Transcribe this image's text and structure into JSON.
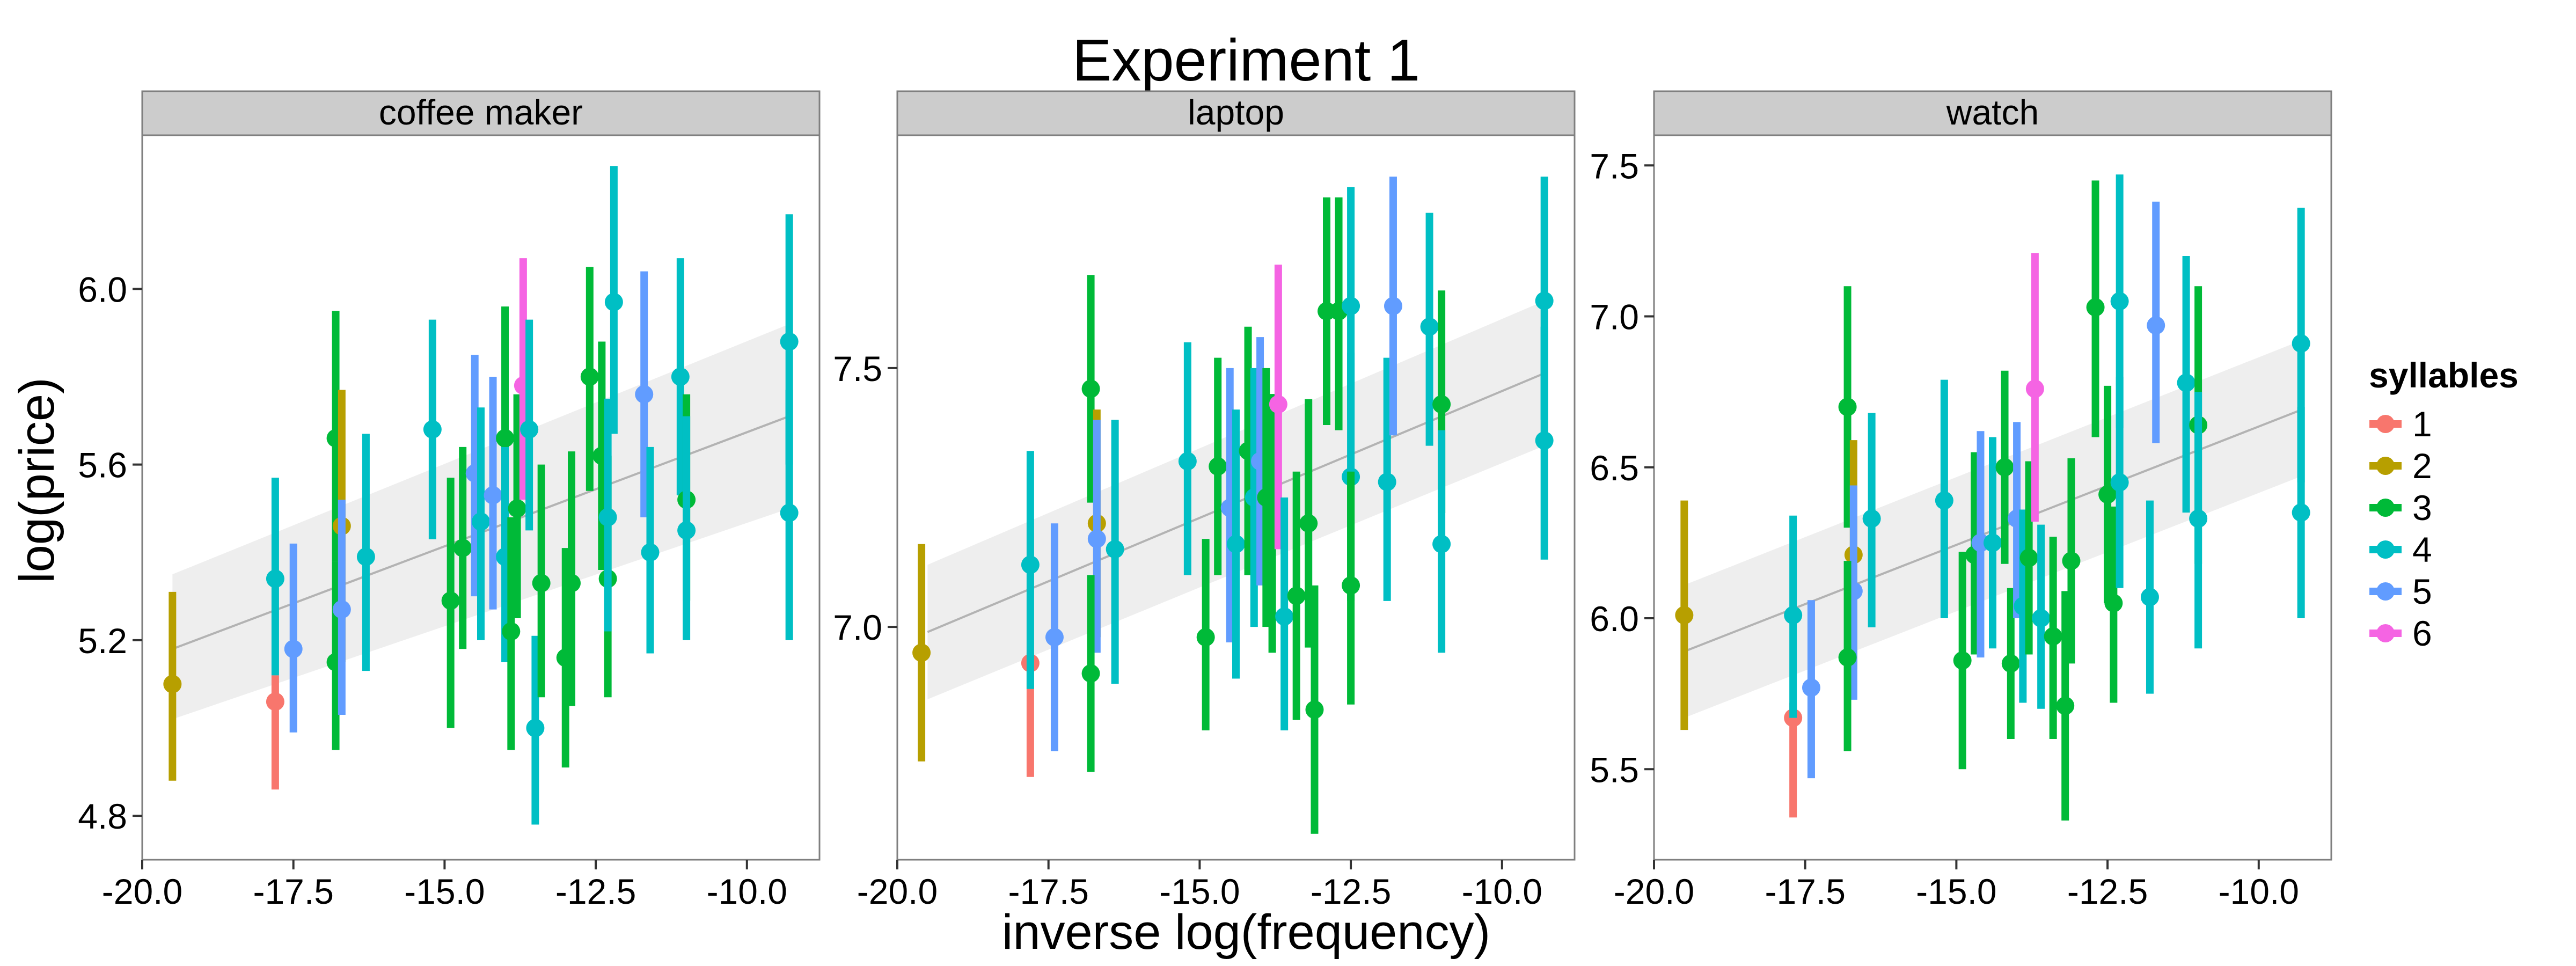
{
  "figure": {
    "title": "Experiment 1",
    "xlabel": "inverse log(frequency)",
    "ylabel": "log(price)"
  },
  "legend": {
    "title": "syllables",
    "placement": "right",
    "entries": [
      {
        "label": "1",
        "color": "#F8766D"
      },
      {
        "label": "2",
        "color": "#B79F00"
      },
      {
        "label": "3",
        "color": "#00BA38"
      },
      {
        "label": "4",
        "color": "#00BFC4"
      },
      {
        "label": "5",
        "color": "#619CFF"
      },
      {
        "label": "6",
        "color": "#F564E3"
      }
    ]
  },
  "colors": {
    "panel_bg": "#ffffff",
    "strip_bg": "#cccccc",
    "ribbon": "#ebebeb",
    "fit_line": "#b3b3b3"
  },
  "chart_data": [
    {
      "type": "scatter",
      "facet": "coffee maker",
      "xlim": [
        -20,
        -8.8
      ],
      "ylim": [
        4.7,
        6.35
      ],
      "xticks": [
        -20,
        -17.5,
        -15,
        -12.5,
        -10
      ],
      "xtick_labels": [
        "-20.0",
        "-17.5",
        "-15.0",
        "-12.5",
        "-10.0"
      ],
      "yticks": [
        4.8,
        5.2,
        5.6,
        6.0
      ],
      "ytick_labels": [
        "4.8",
        "5.2",
        "5.6",
        "6.0"
      ],
      "grid": false,
      "fit": {
        "x": [
          -19.5,
          -9.3
        ],
        "y": [
          5.18,
          5.71
        ],
        "ribbon_lower": [
          5.02,
          5.5
        ],
        "ribbon_upper": [
          5.35,
          5.92
        ]
      },
      "points": [
        {
          "x": -19.5,
          "y": 5.1,
          "lo": 4.88,
          "hi": 5.31,
          "syllables": 2
        },
        {
          "x": -17.8,
          "y": 5.06,
          "lo": 4.86,
          "hi": 5.12,
          "syllables": 1
        },
        {
          "x": -17.8,
          "y": 5.34,
          "lo": 5.12,
          "hi": 5.57,
          "syllables": 4
        },
        {
          "x": -17.5,
          "y": 5.18,
          "lo": 4.99,
          "hi": 5.42,
          "syllables": 5
        },
        {
          "x": -16.8,
          "y": 5.66,
          "lo": 5.38,
          "hi": 5.95,
          "syllables": 3
        },
        {
          "x": -16.7,
          "y": 5.46,
          "lo": 5.15,
          "hi": 5.77,
          "syllables": 2
        },
        {
          "x": -16.8,
          "y": 5.15,
          "lo": 4.95,
          "hi": 5.38,
          "syllables": 3
        },
        {
          "x": -16.7,
          "y": 5.27,
          "lo": 5.03,
          "hi": 5.52,
          "syllables": 5
        },
        {
          "x": -16.3,
          "y": 5.39,
          "lo": 5.13,
          "hi": 5.67,
          "syllables": 4
        },
        {
          "x": -15.2,
          "y": 5.68,
          "lo": 5.43,
          "hi": 5.93,
          "syllables": 4
        },
        {
          "x": -14.9,
          "y": 5.29,
          "lo": 5.0,
          "hi": 5.57,
          "syllables": 3
        },
        {
          "x": -14.7,
          "y": 5.41,
          "lo": 5.18,
          "hi": 5.64,
          "syllables": 3
        },
        {
          "x": -14.5,
          "y": 5.58,
          "lo": 5.3,
          "hi": 5.85,
          "syllables": 5
        },
        {
          "x": -14.4,
          "y": 5.47,
          "lo": 5.2,
          "hi": 5.73,
          "syllables": 4
        },
        {
          "x": -14.2,
          "y": 5.53,
          "lo": 5.27,
          "hi": 5.8,
          "syllables": 5
        },
        {
          "x": -14.0,
          "y": 5.66,
          "lo": 5.37,
          "hi": 5.96,
          "syllables": 3
        },
        {
          "x": -14.0,
          "y": 5.39,
          "lo": 5.15,
          "hi": 5.64,
          "syllables": 4
        },
        {
          "x": -13.9,
          "y": 5.22,
          "lo": 4.95,
          "hi": 5.48,
          "syllables": 3
        },
        {
          "x": -13.8,
          "y": 5.5,
          "lo": 5.25,
          "hi": 5.76,
          "syllables": 3
        },
        {
          "x": -13.7,
          "y": 5.78,
          "lo": 5.52,
          "hi": 6.07,
          "syllables": 6
        },
        {
          "x": -13.6,
          "y": 5.68,
          "lo": 5.45,
          "hi": 5.93,
          "syllables": 4
        },
        {
          "x": -13.5,
          "y": 5.0,
          "lo": 4.78,
          "hi": 5.21,
          "syllables": 4
        },
        {
          "x": -13.4,
          "y": 5.33,
          "lo": 5.07,
          "hi": 5.6,
          "syllables": 3
        },
        {
          "x": -13.0,
          "y": 5.16,
          "lo": 4.91,
          "hi": 5.41,
          "syllables": 3
        },
        {
          "x": -12.9,
          "y": 5.33,
          "lo": 5.05,
          "hi": 5.63,
          "syllables": 3
        },
        {
          "x": -12.6,
          "y": 5.8,
          "lo": 5.54,
          "hi": 6.05,
          "syllables": 3
        },
        {
          "x": -12.4,
          "y": 5.62,
          "lo": 5.36,
          "hi": 5.88,
          "syllables": 3
        },
        {
          "x": -12.3,
          "y": 5.34,
          "lo": 5.07,
          "hi": 5.62,
          "syllables": 3
        },
        {
          "x": -12.2,
          "y": 5.97,
          "lo": 5.67,
          "hi": 6.28,
          "syllables": 4
        },
        {
          "x": -12.3,
          "y": 5.48,
          "lo": 5.22,
          "hi": 5.75,
          "syllables": 4
        },
        {
          "x": -11.7,
          "y": 5.76,
          "lo": 5.48,
          "hi": 6.04,
          "syllables": 5
        },
        {
          "x": -11.6,
          "y": 5.4,
          "lo": 5.17,
          "hi": 5.64,
          "syllables": 4
        },
        {
          "x": -11.1,
          "y": 5.8,
          "lo": 5.53,
          "hi": 6.07,
          "syllables": 4
        },
        {
          "x": -11.0,
          "y": 5.52,
          "lo": 5.29,
          "hi": 5.76,
          "syllables": 3
        },
        {
          "x": -11.0,
          "y": 5.45,
          "lo": 5.2,
          "hi": 5.71,
          "syllables": 4
        },
        {
          "x": -9.3,
          "y": 5.88,
          "lo": 5.6,
          "hi": 6.17,
          "syllables": 4
        },
        {
          "x": -9.3,
          "y": 5.49,
          "lo": 5.2,
          "hi": 5.77,
          "syllables": 4
        }
      ]
    },
    {
      "type": "scatter",
      "facet": "laptop",
      "xlim": [
        -20,
        -8.8
      ],
      "ylim": [
        6.55,
        7.95
      ],
      "xticks": [
        -20,
        -17.5,
        -15,
        -12.5,
        -10
      ],
      "xtick_labels": [
        "-20.0",
        "-17.5",
        "-15.0",
        "-12.5",
        "-10.0"
      ],
      "yticks": [
        7.0,
        7.5
      ],
      "ytick_labels": [
        "7.0",
        "7.5"
      ],
      "grid": false,
      "fit": {
        "x": [
          -19.5,
          -9.3
        ],
        "y": [
          6.99,
          7.49
        ],
        "ribbon_lower": [
          6.86,
          7.35
        ],
        "ribbon_upper": [
          7.12,
          7.63
        ]
      },
      "points": [
        {
          "x": -19.6,
          "y": 6.95,
          "lo": 6.74,
          "hi": 7.16,
          "syllables": 2
        },
        {
          "x": -17.8,
          "y": 6.93,
          "lo": 6.71,
          "hi": 6.95,
          "syllables": 1
        },
        {
          "x": -17.8,
          "y": 7.12,
          "lo": 6.88,
          "hi": 7.34,
          "syllables": 4
        },
        {
          "x": -17.4,
          "y": 6.98,
          "lo": 6.76,
          "hi": 7.2,
          "syllables": 5
        },
        {
          "x": -16.8,
          "y": 7.46,
          "lo": 7.24,
          "hi": 7.68,
          "syllables": 3
        },
        {
          "x": -16.7,
          "y": 7.2,
          "lo": 6.98,
          "hi": 7.42,
          "syllables": 2
        },
        {
          "x": -16.7,
          "y": 7.17,
          "lo": 6.95,
          "hi": 7.4,
          "syllables": 5
        },
        {
          "x": -16.8,
          "y": 6.91,
          "lo": 6.72,
          "hi": 7.1,
          "syllables": 3
        },
        {
          "x": -16.4,
          "y": 7.15,
          "lo": 6.89,
          "hi": 7.4,
          "syllables": 4
        },
        {
          "x": -15.2,
          "y": 7.32,
          "lo": 7.1,
          "hi": 7.55,
          "syllables": 4
        },
        {
          "x": -14.9,
          "y": 6.98,
          "lo": 6.8,
          "hi": 7.17,
          "syllables": 3
        },
        {
          "x": -14.7,
          "y": 7.31,
          "lo": 7.1,
          "hi": 7.52,
          "syllables": 3
        },
        {
          "x": -14.5,
          "y": 7.23,
          "lo": 6.97,
          "hi": 7.5,
          "syllables": 5
        },
        {
          "x": -14.4,
          "y": 7.16,
          "lo": 6.9,
          "hi": 7.42,
          "syllables": 4
        },
        {
          "x": -14.2,
          "y": 7.34,
          "lo": 7.1,
          "hi": 7.58,
          "syllables": 3
        },
        {
          "x": -14.1,
          "y": 7.25,
          "lo": 7.0,
          "hi": 7.5,
          "syllables": 4
        },
        {
          "x": -14.0,
          "y": 7.32,
          "lo": 7.08,
          "hi": 7.56,
          "syllables": 5
        },
        {
          "x": -13.9,
          "y": 7.25,
          "lo": 7.0,
          "hi": 7.5,
          "syllables": 3
        },
        {
          "x": -13.8,
          "y": 7.2,
          "lo": 6.95,
          "hi": 7.45,
          "syllables": 3
        },
        {
          "x": -13.7,
          "y": 7.43,
          "lo": 7.15,
          "hi": 7.7,
          "syllables": 6
        },
        {
          "x": -13.6,
          "y": 7.02,
          "lo": 6.8,
          "hi": 7.25,
          "syllables": 4
        },
        {
          "x": -13.4,
          "y": 7.06,
          "lo": 6.82,
          "hi": 7.3,
          "syllables": 3
        },
        {
          "x": -13.2,
          "y": 7.2,
          "lo": 6.96,
          "hi": 7.44,
          "syllables": 3
        },
        {
          "x": -13.1,
          "y": 6.84,
          "lo": 6.6,
          "hi": 7.08,
          "syllables": 3
        },
        {
          "x": -12.9,
          "y": 7.61,
          "lo": 7.39,
          "hi": 7.83,
          "syllables": 3
        },
        {
          "x": -12.7,
          "y": 7.61,
          "lo": 7.38,
          "hi": 7.83,
          "syllables": 3
        },
        {
          "x": -12.5,
          "y": 7.62,
          "lo": 7.4,
          "hi": 7.85,
          "syllables": 4
        },
        {
          "x": -12.5,
          "y": 7.29,
          "lo": 7.05,
          "hi": 7.53,
          "syllables": 4
        },
        {
          "x": -12.5,
          "y": 7.08,
          "lo": 6.85,
          "hi": 7.3,
          "syllables": 3
        },
        {
          "x": -11.9,
          "y": 7.28,
          "lo": 7.05,
          "hi": 7.52,
          "syllables": 4
        },
        {
          "x": -11.8,
          "y": 7.62,
          "lo": 7.37,
          "hi": 7.87,
          "syllables": 5
        },
        {
          "x": -11.2,
          "y": 7.58,
          "lo": 7.35,
          "hi": 7.8,
          "syllables": 4
        },
        {
          "x": -11.0,
          "y": 7.43,
          "lo": 7.22,
          "hi": 7.65,
          "syllables": 3
        },
        {
          "x": -11.0,
          "y": 7.16,
          "lo": 6.95,
          "hi": 7.38,
          "syllables": 4
        },
        {
          "x": -9.3,
          "y": 7.63,
          "lo": 7.4,
          "hi": 7.87,
          "syllables": 4
        },
        {
          "x": -9.3,
          "y": 7.36,
          "lo": 7.13,
          "hi": 7.58,
          "syllables": 4
        }
      ]
    },
    {
      "type": "scatter",
      "facet": "watch",
      "xlim": [
        -20,
        -8.8
      ],
      "ylim": [
        5.2,
        7.6
      ],
      "xticks": [
        -20,
        -17.5,
        -15,
        -12.5,
        -10
      ],
      "xtick_labels": [
        "-20.0",
        "-17.5",
        "-15.0",
        "-12.5",
        "-10.0"
      ],
      "yticks": [
        5.5,
        6.0,
        6.5,
        7.0,
        7.5
      ],
      "ytick_labels": [
        "5.5",
        "6.0",
        "6.5",
        "7.0",
        "7.5"
      ],
      "grid": false,
      "fit": {
        "x": [
          -19.5,
          -9.3
        ],
        "y": [
          5.89,
          6.69
        ],
        "ribbon_lower": [
          5.67,
          6.47
        ],
        "ribbon_upper": [
          6.11,
          6.92
        ]
      },
      "points": [
        {
          "x": -19.5,
          "y": 6.01,
          "lo": 5.63,
          "hi": 6.39,
          "syllables": 2
        },
        {
          "x": -17.7,
          "y": 5.67,
          "lo": 5.34,
          "hi": 5.72,
          "syllables": 1
        },
        {
          "x": -17.7,
          "y": 6.01,
          "lo": 5.67,
          "hi": 6.34,
          "syllables": 4
        },
        {
          "x": -17.4,
          "y": 5.77,
          "lo": 5.47,
          "hi": 6.06,
          "syllables": 5
        },
        {
          "x": -16.8,
          "y": 6.7,
          "lo": 6.3,
          "hi": 7.1,
          "syllables": 3
        },
        {
          "x": -16.7,
          "y": 6.21,
          "lo": 5.83,
          "hi": 6.59,
          "syllables": 2
        },
        {
          "x": -16.7,
          "y": 6.09,
          "lo": 5.73,
          "hi": 6.44,
          "syllables": 5
        },
        {
          "x": -16.8,
          "y": 5.87,
          "lo": 5.56,
          "hi": 6.19,
          "syllables": 3
        },
        {
          "x": -16.4,
          "y": 6.33,
          "lo": 5.97,
          "hi": 6.68,
          "syllables": 4
        },
        {
          "x": -15.2,
          "y": 6.39,
          "lo": 6.0,
          "hi": 6.79,
          "syllables": 4
        },
        {
          "x": -14.9,
          "y": 5.86,
          "lo": 5.5,
          "hi": 6.22,
          "syllables": 3
        },
        {
          "x": -14.7,
          "y": 6.21,
          "lo": 5.88,
          "hi": 6.55,
          "syllables": 3
        },
        {
          "x": -14.6,
          "y": 6.25,
          "lo": 5.87,
          "hi": 6.62,
          "syllables": 5
        },
        {
          "x": -14.4,
          "y": 6.25,
          "lo": 5.9,
          "hi": 6.6,
          "syllables": 4
        },
        {
          "x": -14.2,
          "y": 6.5,
          "lo": 6.18,
          "hi": 6.82,
          "syllables": 3
        },
        {
          "x": -14.1,
          "y": 5.85,
          "lo": 5.6,
          "hi": 6.1,
          "syllables": 3
        },
        {
          "x": -14.0,
          "y": 6.33,
          "lo": 6.0,
          "hi": 6.65,
          "syllables": 5
        },
        {
          "x": -13.9,
          "y": 6.04,
          "lo": 5.72,
          "hi": 6.36,
          "syllables": 4
        },
        {
          "x": -13.8,
          "y": 6.2,
          "lo": 5.88,
          "hi": 6.52,
          "syllables": 3
        },
        {
          "x": -13.7,
          "y": 6.76,
          "lo": 6.32,
          "hi": 7.21,
          "syllables": 6
        },
        {
          "x": -13.6,
          "y": 6.0,
          "lo": 5.7,
          "hi": 6.31,
          "syllables": 4
        },
        {
          "x": -13.4,
          "y": 5.94,
          "lo": 5.6,
          "hi": 6.27,
          "syllables": 3
        },
        {
          "x": -13.2,
          "y": 5.71,
          "lo": 5.33,
          "hi": 6.09,
          "syllables": 3
        },
        {
          "x": -13.1,
          "y": 6.19,
          "lo": 5.85,
          "hi": 6.53,
          "syllables": 3
        },
        {
          "x": -12.7,
          "y": 7.03,
          "lo": 6.6,
          "hi": 7.45,
          "syllables": 3
        },
        {
          "x": -12.5,
          "y": 6.41,
          "lo": 6.05,
          "hi": 6.77,
          "syllables": 3
        },
        {
          "x": -12.4,
          "y": 6.05,
          "lo": 5.72,
          "hi": 6.37,
          "syllables": 3
        },
        {
          "x": -12.3,
          "y": 7.05,
          "lo": 6.63,
          "hi": 7.47,
          "syllables": 4
        },
        {
          "x": -12.3,
          "y": 6.45,
          "lo": 6.1,
          "hi": 6.8,
          "syllables": 4
        },
        {
          "x": -11.8,
          "y": 6.07,
          "lo": 5.75,
          "hi": 6.39,
          "syllables": 4
        },
        {
          "x": -11.7,
          "y": 6.97,
          "lo": 6.58,
          "hi": 7.38,
          "syllables": 5
        },
        {
          "x": -11.2,
          "y": 6.78,
          "lo": 6.35,
          "hi": 7.2,
          "syllables": 4
        },
        {
          "x": -11.0,
          "y": 6.64,
          "lo": 6.18,
          "hi": 7.1,
          "syllables": 3
        },
        {
          "x": -11.0,
          "y": 6.33,
          "lo": 5.9,
          "hi": 6.75,
          "syllables": 4
        },
        {
          "x": -9.3,
          "y": 6.91,
          "lo": 6.45,
          "hi": 7.36,
          "syllables": 4
        },
        {
          "x": -9.3,
          "y": 6.35,
          "lo": 6.0,
          "hi": 6.7,
          "syllables": 4
        }
      ]
    }
  ]
}
